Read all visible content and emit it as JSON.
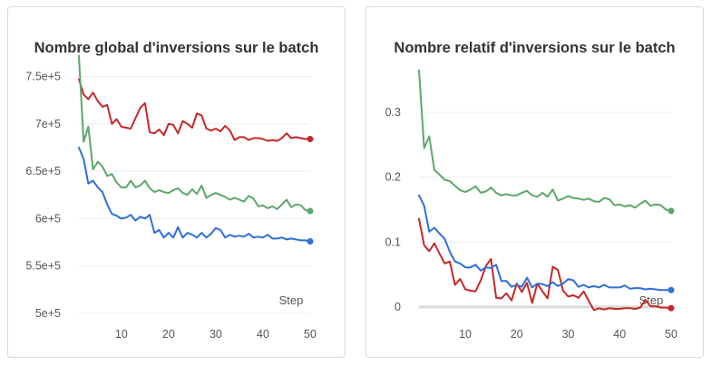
{
  "chart_data": [
    {
      "type": "line",
      "title": "Nombre global d'inversions sur le batch",
      "xlabel": "Step",
      "ylabel": "",
      "xlim": [
        1,
        50
      ],
      "ylim": [
        500000,
        760000
      ],
      "x_ticks": [
        10,
        20,
        30,
        40,
        50
      ],
      "y_ticks": [
        500000,
        550000,
        600000,
        650000,
        700000,
        750000
      ],
      "y_tick_labels": [
        "5e+5",
        "5.5e+5",
        "6e+5",
        "6.5e+5",
        "7e+5",
        "7.5e+5"
      ],
      "grid": true,
      "x": [
        1,
        2,
        3,
        4,
        5,
        6,
        7,
        8,
        9,
        10,
        11,
        12,
        13,
        14,
        15,
        16,
        17,
        18,
        19,
        20,
        21,
        22,
        23,
        24,
        25,
        26,
        27,
        28,
        29,
        30,
        31,
        32,
        33,
        34,
        35,
        36,
        37,
        38,
        39,
        40,
        41,
        42,
        43,
        44,
        45,
        46,
        47,
        48,
        49,
        50
      ],
      "series": [
        {
          "color": "#c62828",
          "values": [
            747000,
            731000,
            726000,
            733000,
            724000,
            718000,
            720000,
            700000,
            705000,
            697000,
            696000,
            695000,
            706000,
            717000,
            722000,
            691000,
            690000,
            694000,
            688000,
            700000,
            699000,
            690000,
            703000,
            700000,
            696000,
            711000,
            709000,
            695000,
            693000,
            695000,
            692000,
            698000,
            693000,
            683000,
            686000,
            686000,
            683000,
            685000,
            685000,
            684000,
            682000,
            683000,
            682000,
            685000,
            690000,
            685000,
            686000,
            685000,
            684000,
            684000
          ]
        },
        {
          "color": "#5aa86a",
          "values": [
            772000,
            681000,
            697000,
            652000,
            660000,
            655000,
            645000,
            647000,
            638000,
            633000,
            633000,
            640000,
            633000,
            635000,
            640000,
            632000,
            628000,
            630000,
            628000,
            627000,
            630000,
            632000,
            627000,
            625000,
            631000,
            626000,
            635000,
            622000,
            625000,
            627000,
            625000,
            623000,
            620000,
            622000,
            620000,
            618000,
            624000,
            621000,
            613000,
            614000,
            611000,
            613000,
            610000,
            615000,
            620000,
            612000,
            615000,
            614000,
            609000,
            608000
          ]
        },
        {
          "color": "#2e6fd8",
          "values": [
            675000,
            663000,
            637000,
            640000,
            633000,
            628000,
            615000,
            605000,
            603000,
            600000,
            601000,
            604000,
            598000,
            602000,
            600000,
            604000,
            585000,
            588000,
            580000,
            585000,
            580000,
            591000,
            580000,
            585000,
            583000,
            580000,
            585000,
            580000,
            584000,
            590000,
            588000,
            580000,
            583000,
            581000,
            582000,
            581000,
            584000,
            580000,
            581000,
            580000,
            583000,
            579000,
            579000,
            580000,
            578000,
            579000,
            578000,
            577000,
            577000,
            576000
          ]
        }
      ]
    },
    {
      "type": "line",
      "title": "Nombre relatif d'inversions sur le batch",
      "xlabel": "Step",
      "ylabel": "",
      "xlim": [
        1,
        50
      ],
      "ylim": [
        -0.01,
        0.37
      ],
      "x_ticks": [
        10,
        20,
        30,
        40,
        50
      ],
      "y_ticks": [
        0,
        0.1,
        0.2,
        0.3
      ],
      "y_tick_labels": [
        "0",
        "0.1",
        "0.2",
        "0.3"
      ],
      "grid": true,
      "x": [
        1,
        2,
        3,
        4,
        5,
        6,
        7,
        8,
        9,
        10,
        11,
        12,
        13,
        14,
        15,
        16,
        17,
        18,
        19,
        20,
        21,
        22,
        23,
        24,
        25,
        26,
        27,
        28,
        29,
        30,
        31,
        32,
        33,
        34,
        35,
        36,
        37,
        38,
        39,
        40,
        41,
        42,
        43,
        44,
        45,
        46,
        47,
        48,
        49,
        50
      ],
      "series": [
        {
          "color": "#c62828",
          "values": [
            0.136,
            0.095,
            0.086,
            0.098,
            0.082,
            0.067,
            0.07,
            0.034,
            0.043,
            0.027,
            0.025,
            0.024,
            0.041,
            0.063,
            0.074,
            0.014,
            0.013,
            0.021,
            0.01,
            0.036,
            0.023,
            0.037,
            0.006,
            0.036,
            0.024,
            0.013,
            0.062,
            0.057,
            0.025,
            0.016,
            0.018,
            0.014,
            0.024,
            0.009,
            -0.005,
            -0.002,
            -0.004,
            -0.002,
            -0.003,
            -0.003,
            -0.002,
            -0.002,
            -0.003,
            -0.001,
            0.011,
            0.001,
            0.001,
            -0.001,
            -0.001,
            -0.002
          ]
        },
        {
          "color": "#5aa86a",
          "values": [
            0.365,
            0.245,
            0.263,
            0.211,
            0.204,
            0.196,
            0.194,
            0.187,
            0.18,
            0.177,
            0.181,
            0.186,
            0.176,
            0.178,
            0.184,
            0.176,
            0.172,
            0.174,
            0.172,
            0.172,
            0.176,
            0.179,
            0.172,
            0.17,
            0.176,
            0.17,
            0.181,
            0.164,
            0.167,
            0.171,
            0.168,
            0.167,
            0.165,
            0.167,
            0.163,
            0.162,
            0.168,
            0.166,
            0.157,
            0.158,
            0.155,
            0.157,
            0.153,
            0.159,
            0.164,
            0.156,
            0.158,
            0.157,
            0.15,
            0.148
          ]
        },
        {
          "color": "#2e6fd8",
          "values": [
            0.172,
            0.156,
            0.116,
            0.122,
            0.113,
            0.105,
            0.085,
            0.07,
            0.067,
            0.061,
            0.061,
            0.065,
            0.056,
            0.061,
            0.06,
            0.065,
            0.04,
            0.04,
            0.031,
            0.034,
            0.031,
            0.045,
            0.03,
            0.036,
            0.035,
            0.032,
            0.038,
            0.032,
            0.036,
            0.043,
            0.041,
            0.031,
            0.034,
            0.03,
            0.032,
            0.03,
            0.034,
            0.03,
            0.03,
            0.03,
            0.033,
            0.028,
            0.029,
            0.029,
            0.027,
            0.028,
            0.027,
            0.026,
            0.026,
            0.026
          ]
        }
      ]
    }
  ]
}
